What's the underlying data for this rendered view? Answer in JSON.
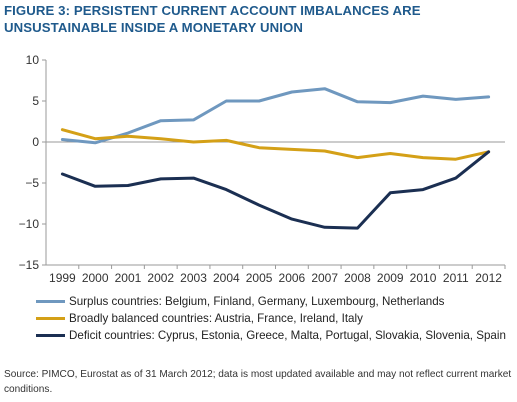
{
  "title": "FIGURE 3: PERSISTENT CURRENT ACCOUNT IMBALANCES ARE UNSUSTAINABLE INSIDE A MONETARY UNION",
  "source": "Source: PIMCO, Eurostat as of 31 March 2012; data is most updated available and may not reflect current market conditions.",
  "chart_data": {
    "type": "line",
    "title": "FIGURE 3: PERSISTENT CURRENT ACCOUNT IMBALANCES ARE UNSUSTAINABLE INSIDE A MONETARY UNION",
    "xlabel": "",
    "ylabel": "",
    "ylim": [
      -15,
      10
    ],
    "yticks": [
      10,
      5,
      0,
      -5,
      -10,
      -15
    ],
    "ytick_labels": [
      "10",
      "5",
      "0",
      "−5",
      "−10",
      "−15"
    ],
    "grid": false,
    "legend_position": "bottom",
    "x": [
      "1999",
      "2000",
      "2001",
      "2002",
      "2003",
      "2004",
      "2005",
      "2006",
      "2007",
      "2008",
      "2009",
      "2010",
      "2011",
      "2012"
    ],
    "series": [
      {
        "name": "Surplus countries: Belgium, Finland, Germany, Luxembourg, Netherlands",
        "color": "#6f98bf",
        "values": [
          0.3,
          -0.1,
          1.1,
          2.6,
          2.7,
          5.0,
          5.0,
          6.1,
          6.5,
          4.9,
          4.8,
          5.6,
          5.2,
          5.5
        ]
      },
      {
        "name": "Broadly balanced countries: Austria, France, Ireland, Italy",
        "color": "#d4a017",
        "values": [
          1.5,
          0.4,
          0.7,
          0.4,
          0.0,
          0.2,
          -0.7,
          -0.9,
          -1.1,
          -1.9,
          -1.4,
          -1.9,
          -2.1,
          -1.2
        ]
      },
      {
        "name": "Deficit countries: Cyprus, Estonia, Greece, Malta, Portugal, Slovakia, Slovenia, Spain",
        "color": "#1b2f52",
        "values": [
          -3.9,
          -5.4,
          -5.3,
          -4.5,
          -4.4,
          -5.8,
          -7.7,
          -9.4,
          -10.4,
          -10.5,
          -6.2,
          -5.8,
          -4.4,
          -1.2
        ]
      }
    ]
  }
}
